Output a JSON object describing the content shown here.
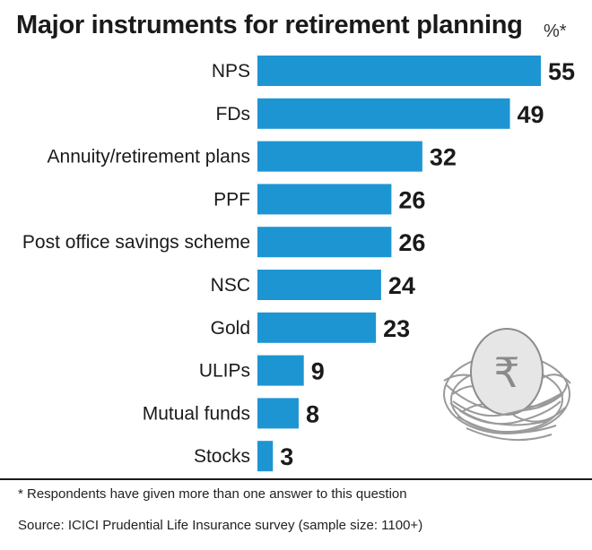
{
  "chart_data": {
    "type": "bar",
    "orientation": "horizontal",
    "title": "Major instruments for retirement planning",
    "unit": "%*",
    "categories": [
      "NPS",
      "FDs",
      "Annuity/retirement plans",
      "PPF",
      "Post office savings scheme",
      "NSC",
      "Gold",
      "ULIPs",
      "Mutual funds",
      "Stocks"
    ],
    "values": [
      55,
      49,
      32,
      26,
      26,
      24,
      23,
      9,
      8,
      3
    ],
    "xlim": [
      0,
      55
    ],
    "grid": false,
    "legend": "none",
    "bar_color": "#1d95d3"
  },
  "footnote": "* Respondents have given more than one answer to this question",
  "source": "Source: ICICI Prudential Life Insurance survey (sample size: 1100+)",
  "illustration": {
    "icon": "nest-egg-rupee-icon",
    "symbol": "₹"
  }
}
